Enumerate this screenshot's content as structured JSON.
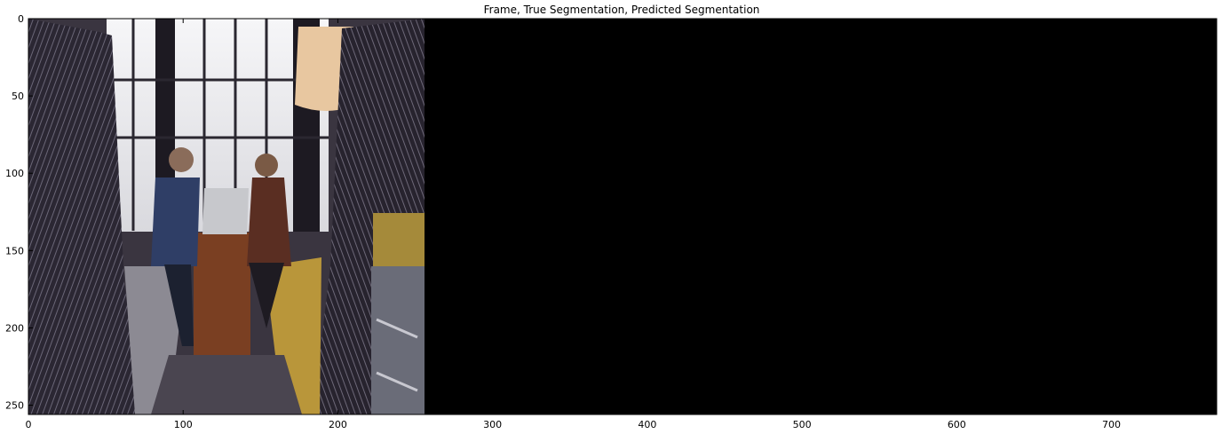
{
  "figure": {
    "title": "Frame, True Segmentation, Predicted Segmentation"
  },
  "image": {
    "x_ticks": [
      "0",
      "100",
      "200",
      "300",
      "400",
      "500",
      "600",
      "700"
    ],
    "y_ticks": [
      "0",
      "50",
      "100",
      "150",
      "200",
      "250"
    ],
    "x_range": [
      0,
      768
    ],
    "y_range": [
      0,
      256
    ],
    "panels": [
      {
        "name": "Frame",
        "description_colors": [
          "#efefef",
          "#2a2533",
          "#c9a13b",
          "#7a8099"
        ]
      },
      {
        "name": "True Segmentation",
        "color": "#000000"
      },
      {
        "name": "Predicted Segmentation",
        "color": "#000000"
      }
    ]
  }
}
